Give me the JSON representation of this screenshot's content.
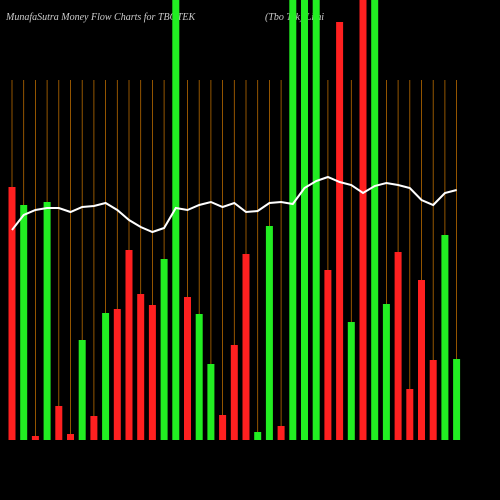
{
  "chart_data": {
    "type": "bar",
    "title": "MunafaSutra  Money Flow  Charts for TBOTEK",
    "subtitle": "(Tbo  Tek) Limi",
    "ylim": [
      0,
      440
    ],
    "series": [
      {
        "type": "bar",
        "colors": [
          "#ff2020",
          "#22ee22",
          "#ff2020",
          "#22ee22",
          "#ff2020",
          "#ff2020",
          "#22ee22",
          "#ff2020",
          "#22ee22",
          "#ff2020",
          "#ff2020",
          "#ff2020",
          "#ff2020",
          "#22ee22",
          "#22ee22",
          "#ff2020",
          "#22ee22",
          "#22ee22",
          "#ff2020",
          "#ff2020",
          "#ff2020",
          "#22ee22",
          "#22ee22",
          "#ff2020",
          "#22ee22",
          "#22ee22",
          "#22ee22",
          "#ff2020",
          "#ff2020",
          "#22ee22",
          "#ff2020",
          "#22ee22",
          "#22ee22",
          "#ff2020",
          "#ff2020",
          "#ff2020",
          "#ff2020",
          "#22ee22",
          "#22ee22"
        ],
        "values": [
          253,
          235,
          4,
          238,
          34,
          6,
          100,
          24,
          127,
          131,
          190,
          146,
          135,
          181,
          440,
          143,
          126,
          76,
          25,
          95,
          186,
          8,
          214,
          14,
          440,
          440,
          440,
          170,
          418,
          118,
          440,
          440,
          136,
          188,
          51,
          160,
          80,
          205,
          81
        ]
      },
      {
        "type": "line",
        "color": "#ffffff",
        "values": [
          210,
          225,
          230,
          232,
          232,
          228,
          233,
          234,
          237,
          230,
          220,
          213,
          208,
          212,
          232,
          230,
          235,
          238,
          233,
          237,
          228,
          229,
          237,
          238,
          236,
          252,
          259,
          263,
          258,
          255,
          247,
          254,
          257,
          255,
          252,
          240,
          235,
          247,
          250
        ]
      }
    ]
  }
}
